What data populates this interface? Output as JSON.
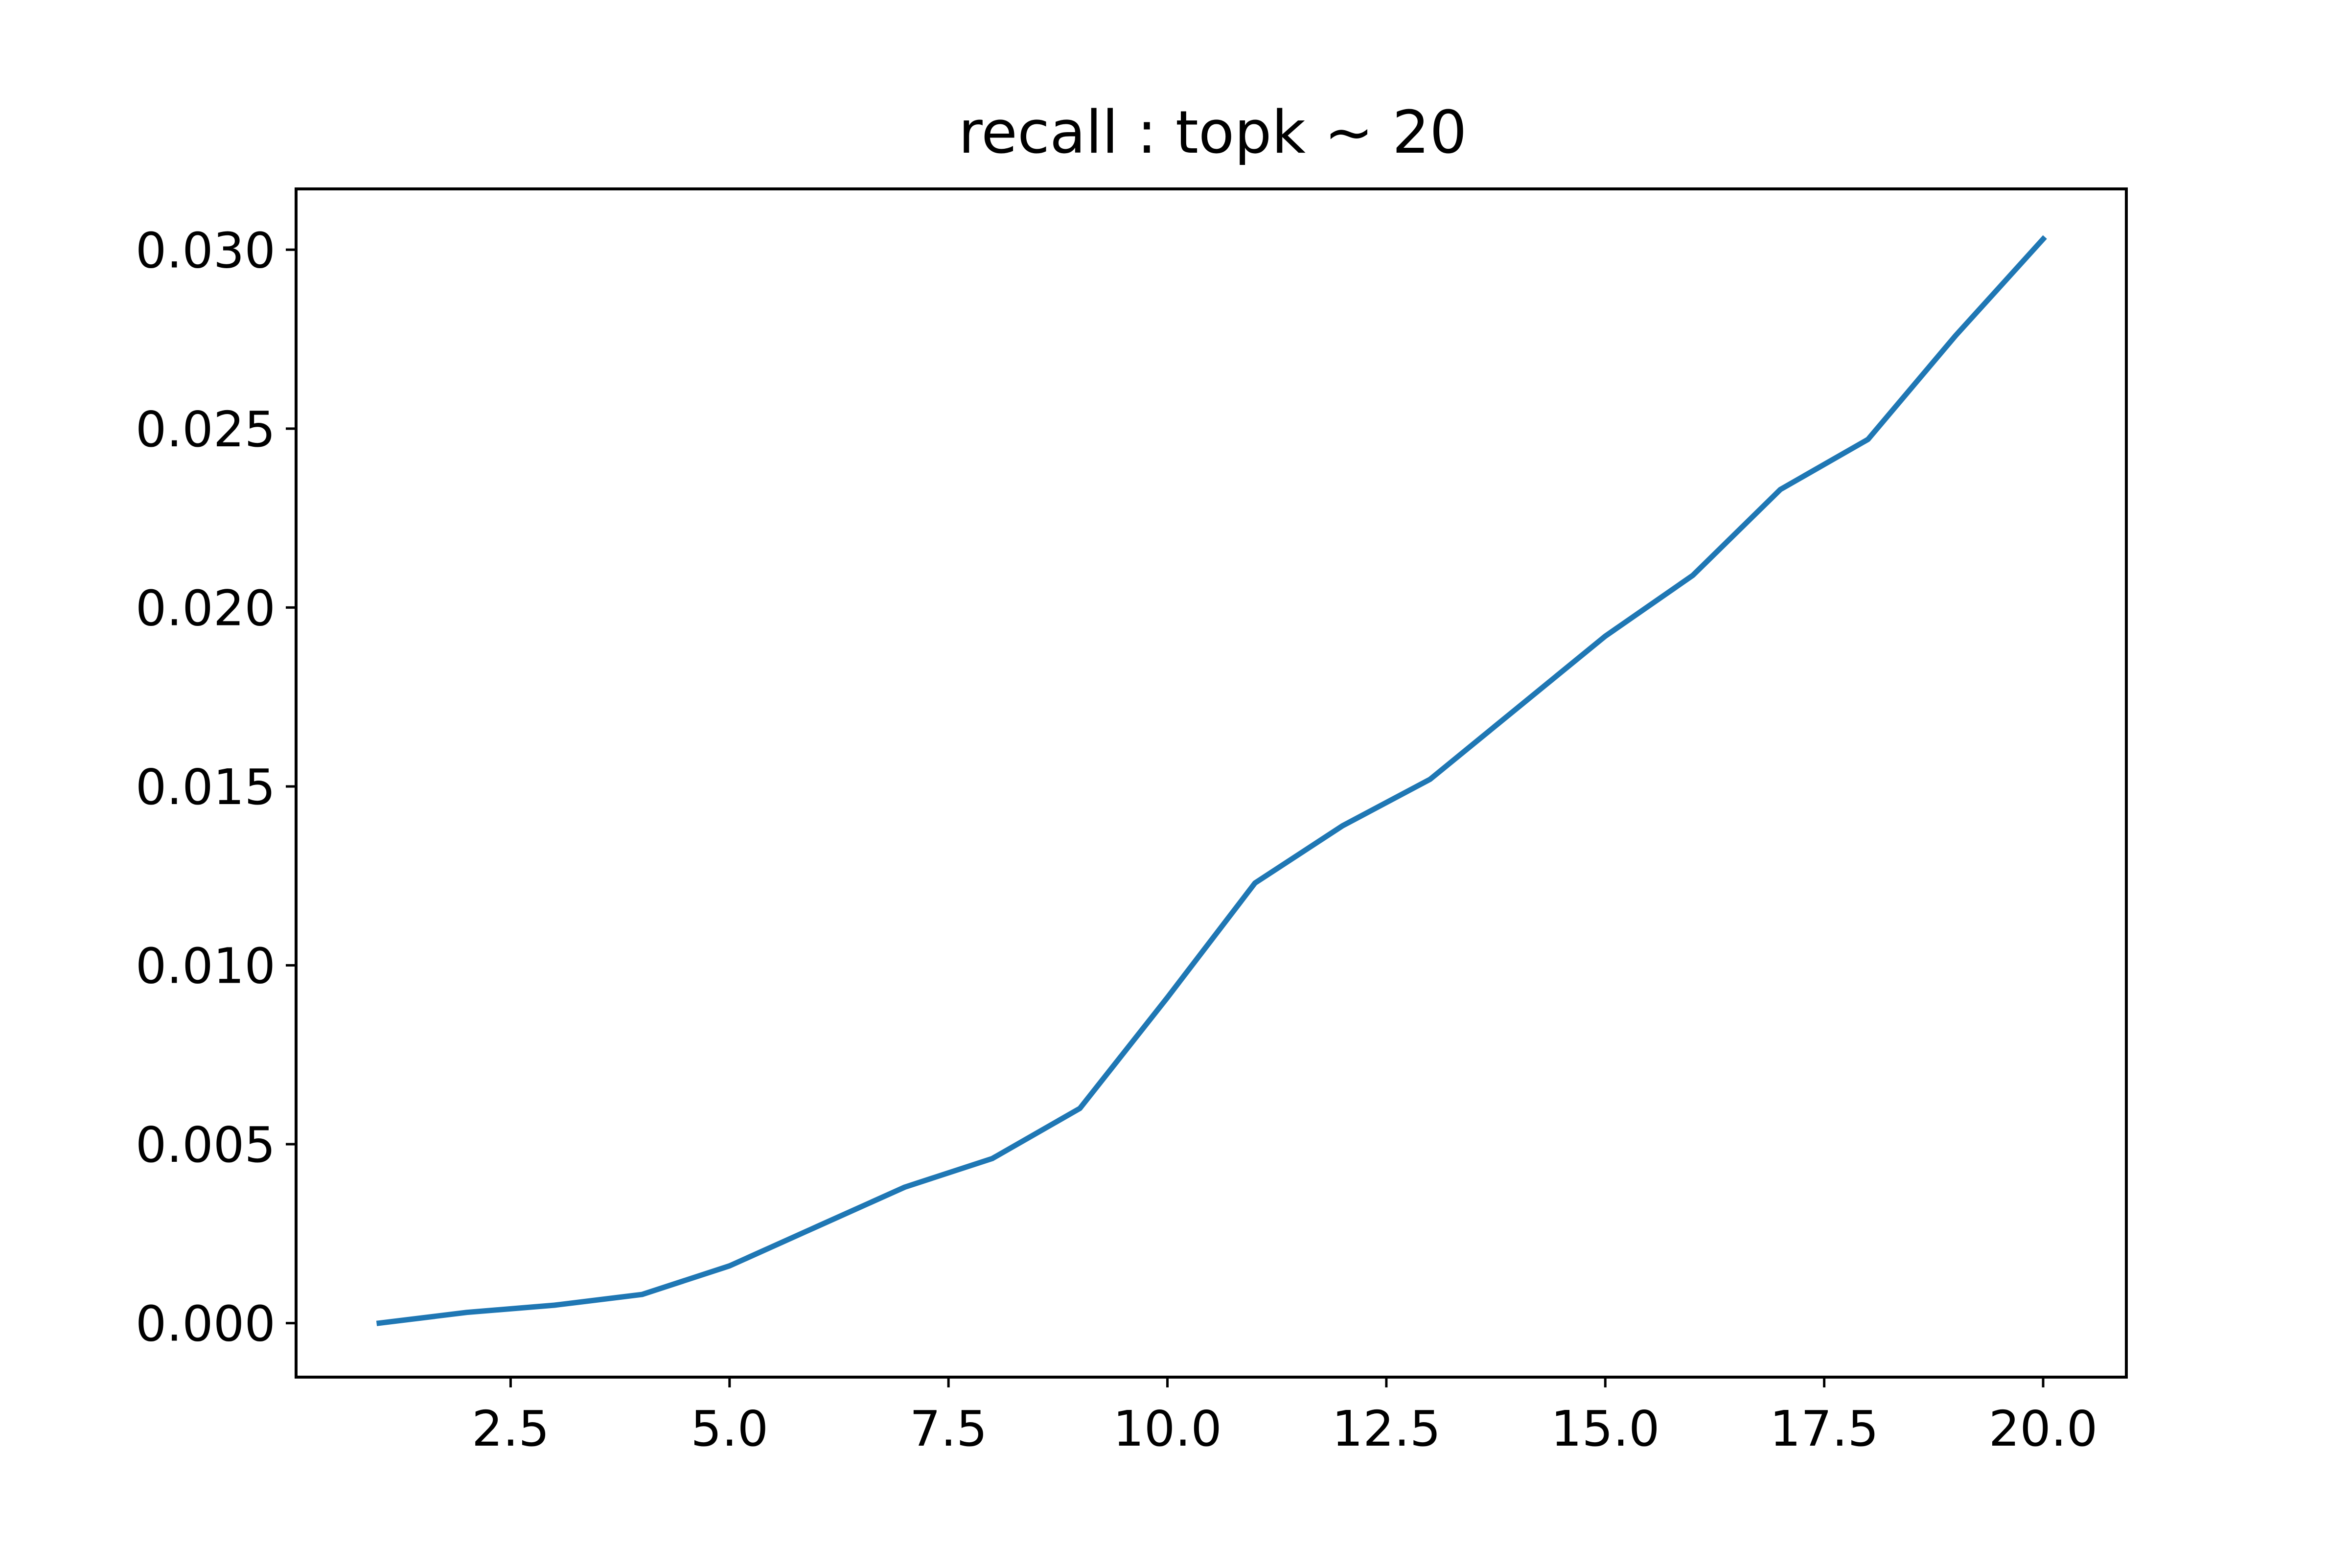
{
  "chart_data": {
    "type": "line",
    "title": "recall : topk ~ 20",
    "xlabel": "",
    "ylabel": "",
    "xlim": [
      0.05,
      20.95
    ],
    "ylim": [
      -0.00151,
      0.0317
    ],
    "xticks": [
      2.5,
      5.0,
      7.5,
      10.0,
      12.5,
      15.0,
      17.5,
      20.0
    ],
    "xtick_labels": [
      "2.5",
      "5.0",
      "7.5",
      "10.0",
      "12.5",
      "15.0",
      "17.5",
      "20.0"
    ],
    "yticks": [
      0.0,
      0.005,
      0.01,
      0.015,
      0.02,
      0.025,
      0.03
    ],
    "ytick_labels": [
      "0.000",
      "0.005",
      "0.010",
      "0.015",
      "0.020",
      "0.025",
      "0.030"
    ],
    "grid": false,
    "legend": "none",
    "series": [
      {
        "color": "#1f77b4",
        "x": [
          1,
          2,
          3,
          4,
          5,
          6,
          7,
          8,
          9,
          10,
          11,
          12,
          13,
          14,
          15,
          16,
          17,
          18,
          19,
          20
        ],
        "y": [
          0.0,
          0.0003,
          0.0005,
          0.0008,
          0.0016,
          0.0027,
          0.0038,
          0.0046,
          0.006,
          0.0091,
          0.0123,
          0.0139,
          0.0152,
          0.0172,
          0.0192,
          0.0209,
          0.0233,
          0.0247,
          0.0276,
          0.0303
        ]
      }
    ]
  }
}
